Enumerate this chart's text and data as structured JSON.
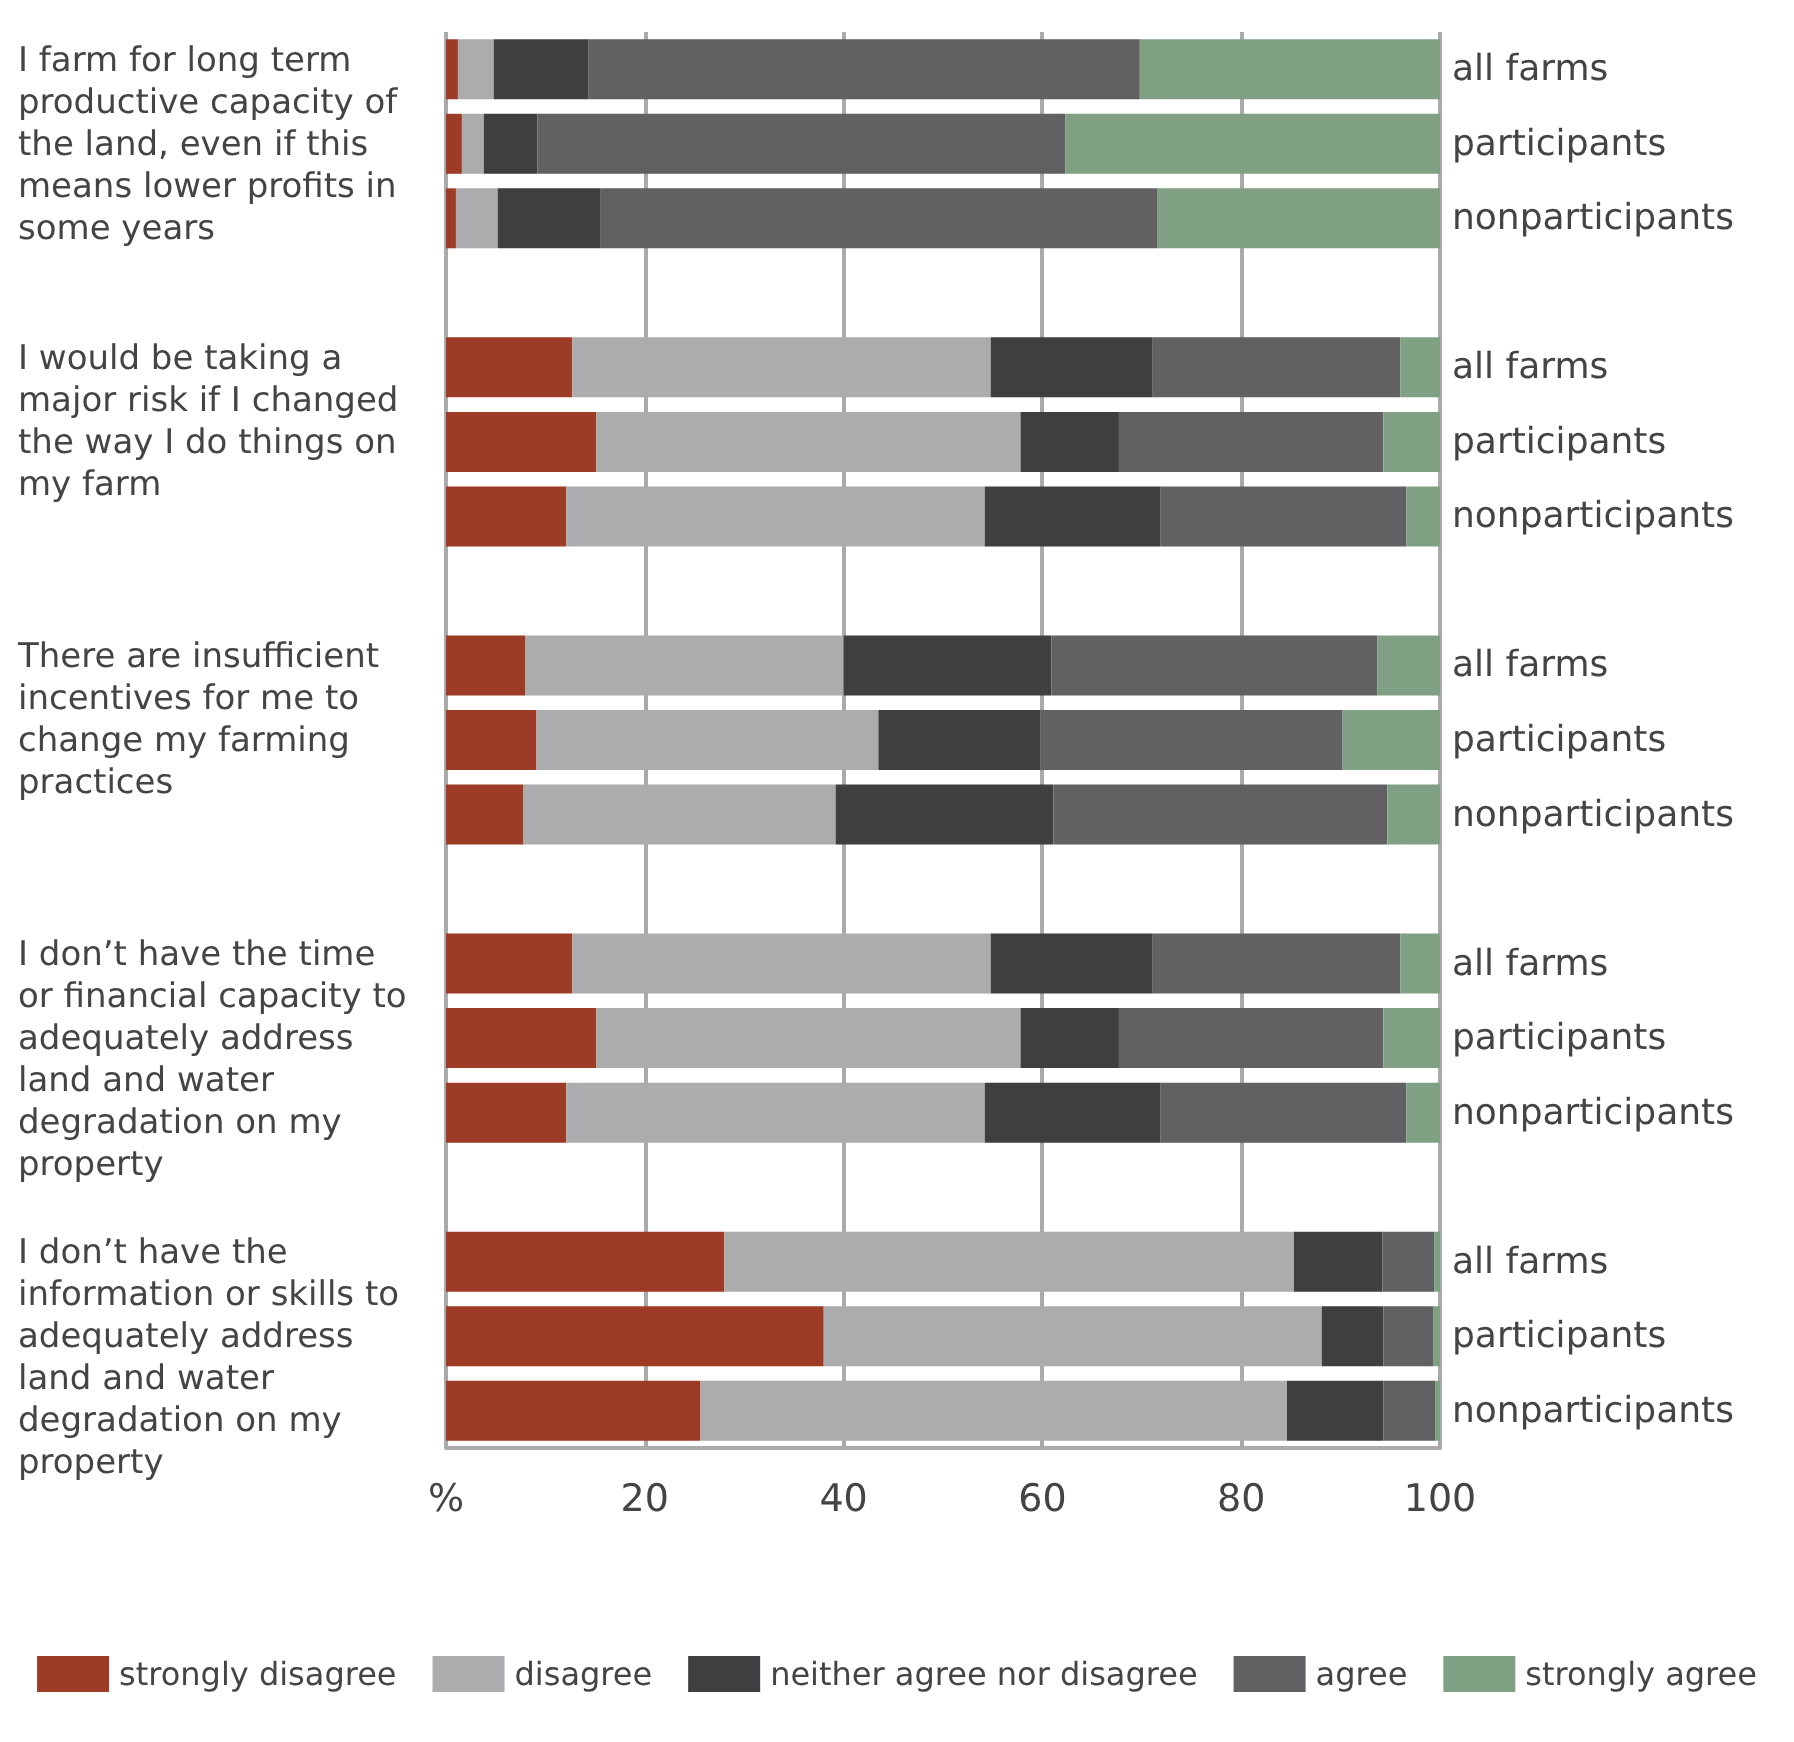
{
  "chart_data": {
    "type": "bar",
    "orientation": "horizontal",
    "stacked": true,
    "categories": [
      "all farms",
      "participants",
      "nonparticipants",
      null,
      "all farms",
      "participants",
      "nonparticipants",
      null,
      "all farms",
      "participants",
      "nonparticipants",
      null,
      "all farms",
      "participants",
      "nonparticipants",
      null,
      "all farms",
      "participants",
      "nonparticipants"
    ],
    "series": [
      {
        "name": "strongly disagree",
        "color": "#9c3b26",
        "values": [
          1.2,
          1.6,
          1,
          null,
          12.7,
          15.1,
          12.1,
          null,
          8.0,
          9.1,
          7.8,
          null,
          12.7,
          15.1,
          12.1,
          null,
          28.0,
          38.0,
          25.6
        ]
      },
      {
        "name": "disagree",
        "color": "#acacae",
        "values": [
          3.6,
          2.2,
          4.2,
          null,
          42.1,
          42.7,
          42.1,
          null,
          32.0,
          34.4,
          31.4,
          null,
          42.1,
          42.7,
          42.1,
          null,
          57.3,
          50.1,
          59.0
        ]
      },
      {
        "name": "neither agree nor disagree",
        "color": "#3f3f41",
        "values": [
          9.5,
          5.4,
          10.3,
          null,
          16.3,
          9.9,
          17.7,
          null,
          20.9,
          16.3,
          21.9,
          null,
          16.3,
          9.9,
          17.7,
          null,
          8.9,
          6.2,
          9.7
        ]
      },
      {
        "name": "agree",
        "color": "#616163",
        "values": [
          55.5,
          53.1,
          56.1,
          null,
          24.9,
          26.6,
          24.7,
          null,
          32.8,
          30.4,
          33.6,
          null,
          24.9,
          26.6,
          24.7,
          null,
          5.2,
          5.0,
          5.2
        ]
      },
      {
        "name": "strongly agree",
        "color": "#80a084",
        "values": [
          30.2,
          37.7,
          28.4,
          null,
          4.0,
          5.7,
          3.4,
          null,
          6.3,
          9.8,
          5.3,
          null,
          4.0,
          5.7,
          3.4,
          null,
          0.6,
          0.7,
          0.5
        ]
      }
    ],
    "annotations": [
      "I farm for long term productive capacity of the land, even if this means lower profits in some years",
      "I would be taking a major risk if I changed the way I do things on my farm",
      "There are insufficient incentives for me to change my farming practices",
      "I don’t have the time or financial capacity to adequately address land and water degradation on my property",
      "I don’t have the information or skills to adequately address land and water degradation on my property"
    ],
    "xlim": [
      0,
      100
    ],
    "xticks": [
      {
        "value": 0,
        "label": "%"
      },
      20,
      40,
      60,
      80,
      100
    ],
    "grid": "x",
    "legend": "bottom"
  }
}
